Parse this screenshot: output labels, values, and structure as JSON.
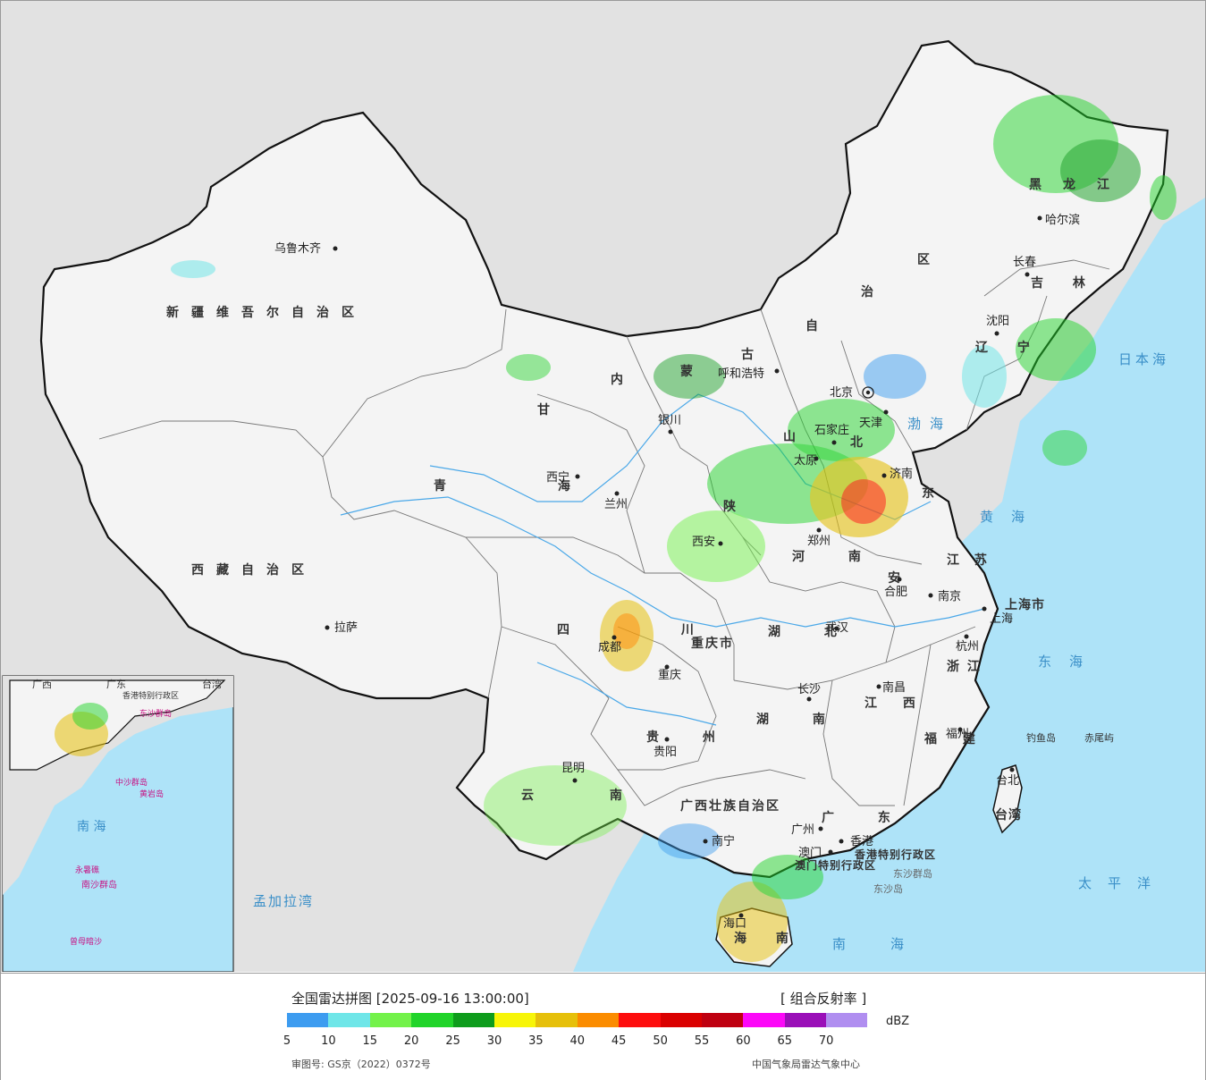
{
  "legend": {
    "title": "全国雷达拼图 [2025-09-16 13:00:00]",
    "product": "[ 组合反射率 ]",
    "unit": "dBZ",
    "ticks": [
      "5",
      "10",
      "15",
      "20",
      "25",
      "30",
      "35",
      "40",
      "45",
      "50",
      "55",
      "60",
      "65",
      "70"
    ],
    "colors": [
      "#3d9cf0",
      "#6fe6e8",
      "#73f24a",
      "#21d42a",
      "#0e9c1c",
      "#f7f508",
      "#e6c00a",
      "#fb8c00",
      "#fd0d0d",
      "#da0000",
      "#bf0010",
      "#fc08f8",
      "#9a0fb8",
      "#b08ef0"
    ],
    "audit_no": "审图号: GS京（2022）0372号",
    "agency": "中国气象局雷达气象中心"
  },
  "labels": {
    "provinces": [
      {
        "id": "xinjiang",
        "text": "新疆维吾尔自治区"
      },
      {
        "id": "xizang",
        "text": "西藏自治区"
      },
      {
        "id": "qinghai",
        "text": "青 海"
      },
      {
        "id": "gansu",
        "text": "甘"
      },
      {
        "id": "neimenggu1",
        "text": "内"
      },
      {
        "id": "neimenggu2",
        "text": "蒙"
      },
      {
        "id": "neimenggu3",
        "text": "古"
      },
      {
        "id": "neimenggu4",
        "text": "自"
      },
      {
        "id": "neimenggu5",
        "text": "治"
      },
      {
        "id": "neimenggu6",
        "text": "区"
      },
      {
        "id": "heilongjiang",
        "text": "黑龙江"
      },
      {
        "id": "jilin",
        "text": "吉 林"
      },
      {
        "id": "liaoning",
        "text": "辽 宁"
      },
      {
        "id": "hebei",
        "text": "北"
      },
      {
        "id": "shanxi",
        "text": "山"
      },
      {
        "id": "shaanxi",
        "text": "陕"
      },
      {
        "id": "henan",
        "text": "河 南"
      },
      {
        "id": "shandong",
        "text": "东"
      },
      {
        "id": "jiangsu",
        "text": "江 苏"
      },
      {
        "id": "anhui",
        "text": "安"
      },
      {
        "id": "hubei",
        "text": "湖 北"
      },
      {
        "id": "hunan",
        "text": "湖 南"
      },
      {
        "id": "sichuan",
        "text": "四 川"
      },
      {
        "id": "chongqing",
        "text": "重庆市"
      },
      {
        "id": "guizhou",
        "text": "贵 州"
      },
      {
        "id": "yunnan",
        "text": "云 南"
      },
      {
        "id": "guangxi",
        "text": "广西壮族自治区"
      },
      {
        "id": "guangdong",
        "text": "广 东"
      },
      {
        "id": "jiangxi",
        "text": "江 西"
      },
      {
        "id": "zhejiang",
        "text": "浙 江"
      },
      {
        "id": "fujian",
        "text": "福 建"
      },
      {
        "id": "taiwan",
        "text": "台湾"
      },
      {
        "id": "hainan",
        "text": "海 南"
      },
      {
        "id": "shanghai",
        "text": "上海市"
      },
      {
        "id": "hk_mo",
        "text": "香港特别行政区"
      },
      {
        "id": "macau",
        "text": "澳门特别行政区"
      }
    ],
    "cities": [
      {
        "id": "urumqi",
        "text": "乌鲁木齐"
      },
      {
        "id": "lhasa",
        "text": "拉萨"
      },
      {
        "id": "xining",
        "text": "西宁"
      },
      {
        "id": "lanzhou",
        "text": "兰州"
      },
      {
        "id": "yinchuan",
        "text": "银川"
      },
      {
        "id": "hohhot",
        "text": "呼和浩特"
      },
      {
        "id": "beijing",
        "text": "北京"
      },
      {
        "id": "tianjin",
        "text": "天津"
      },
      {
        "id": "shijiazhuang",
        "text": "石家庄"
      },
      {
        "id": "taiyuan",
        "text": "太原"
      },
      {
        "id": "jinan",
        "text": "济南"
      },
      {
        "id": "zhengzhou",
        "text": "郑州"
      },
      {
        "id": "xian",
        "text": "西安"
      },
      {
        "id": "hefei",
        "text": "合肥"
      },
      {
        "id": "nanjing",
        "text": "南京"
      },
      {
        "id": "shanghai_city",
        "text": "上海"
      },
      {
        "id": "hangzhou",
        "text": "杭州"
      },
      {
        "id": "wuhan",
        "text": "武汉"
      },
      {
        "id": "chengdu",
        "text": "成都"
      },
      {
        "id": "chongqing_city",
        "text": "重庆"
      },
      {
        "id": "changsha",
        "text": "长沙"
      },
      {
        "id": "nanchang",
        "text": "南昌"
      },
      {
        "id": "guiyang",
        "text": "贵阳"
      },
      {
        "id": "kunming",
        "text": "昆明"
      },
      {
        "id": "nanning",
        "text": "南宁"
      },
      {
        "id": "guangzhou",
        "text": "广州"
      },
      {
        "id": "fuzhou",
        "text": "福州"
      },
      {
        "id": "taibei",
        "text": "台北"
      },
      {
        "id": "haikou",
        "text": "海口"
      },
      {
        "id": "shenyang",
        "text": "沈阳"
      },
      {
        "id": "changchun",
        "text": "长春"
      },
      {
        "id": "harbin",
        "text": "哈尔滨"
      },
      {
        "id": "hongkong",
        "text": "香港"
      },
      {
        "id": "macao",
        "text": "澳门"
      }
    ],
    "seas": [
      {
        "id": "bohai",
        "text": "渤海"
      },
      {
        "id": "huanghai",
        "text": "黄海"
      },
      {
        "id": "donghai",
        "text": "东海"
      },
      {
        "id": "nanhai",
        "text": "南海"
      },
      {
        "id": "taipingyang",
        "text": "太平洋"
      },
      {
        "id": "ribenhai",
        "text": "日本海"
      },
      {
        "id": "mengjiala",
        "text": "孟加拉湾"
      }
    ],
    "islands": [
      {
        "id": "diaoyu",
        "text": "钓鱼岛"
      },
      {
        "id": "chiwei",
        "text": "赤尾屿"
      },
      {
        "id": "dongsha_qundao",
        "text": "东沙群岛"
      },
      {
        "id": "dongsha_dao",
        "text": "东沙岛"
      }
    ]
  },
  "inset": {
    "sea": "南 海",
    "labels": [
      "广西",
      "广东",
      "台湾",
      "香港特别行政区",
      "东沙群岛",
      "中沙群岛",
      "黄岩岛",
      "永暑礁",
      "南沙群岛",
      "曾母暗沙"
    ]
  }
}
